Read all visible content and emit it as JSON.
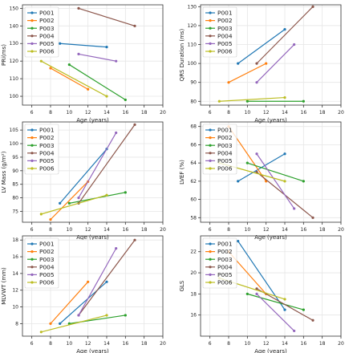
{
  "chart_data": [
    {
      "type": "line",
      "xlabel": "Age (years)",
      "ylabel": "PRi(ms)",
      "xlim": [
        5,
        20
      ],
      "ylim": [
        95,
        152
      ],
      "xticks": [
        "6",
        "8",
        "10",
        "12",
        "14",
        "16",
        "18",
        "20"
      ],
      "yticks": [
        "100",
        "110",
        "120",
        "130",
        "140",
        "150"
      ],
      "grid": true,
      "legend_position": "top-left",
      "series": [
        {
          "name": "P001",
          "color": "#1f77b4",
          "points": [
            [
              9,
              130
            ],
            [
              14,
              128
            ]
          ]
        },
        {
          "name": "P002",
          "color": "#ff7f0e",
          "points": [
            [
              8,
              116
            ],
            [
              12,
              104
            ]
          ]
        },
        {
          "name": "P003",
          "color": "#2ca02c",
          "points": [
            [
              10,
              118
            ],
            [
              16,
              98
            ]
          ]
        },
        {
          "name": "P004",
          "color": "#8c564b",
          "points": [
            [
              11,
              150
            ],
            [
              17,
              140
            ]
          ]
        },
        {
          "name": "P005",
          "color": "#9467bd",
          "points": [
            [
              11,
              124
            ],
            [
              15,
              120
            ]
          ]
        },
        {
          "name": "P006",
          "color": "#bcbd22",
          "points": [
            [
              7,
              120
            ],
            [
              14,
              100
            ]
          ]
        }
      ]
    },
    {
      "type": "line",
      "xlabel": "Age (years)",
      "ylabel": "QRS Duration (ms)",
      "xlim": [
        5,
        20
      ],
      "ylim": [
        78,
        131
      ],
      "xticks": [
        "6",
        "8",
        "10",
        "12",
        "14",
        "16",
        "18",
        "20"
      ],
      "yticks": [
        "80",
        "90",
        "100",
        "110",
        "120",
        "130"
      ],
      "grid": true,
      "legend_position": "top-left",
      "series": [
        {
          "name": "P001",
          "color": "#1f77b4",
          "points": [
            [
              9,
              100
            ],
            [
              14,
              118
            ]
          ]
        },
        {
          "name": "P002",
          "color": "#ff7f0e",
          "points": [
            [
              8,
              90
            ],
            [
              12,
              100
            ]
          ]
        },
        {
          "name": "P003",
          "color": "#2ca02c",
          "points": [
            [
              10,
              80
            ],
            [
              16,
              80
            ]
          ]
        },
        {
          "name": "P004",
          "color": "#8c564b",
          "points": [
            [
              11,
              100
            ],
            [
              17,
              130
            ]
          ]
        },
        {
          "name": "P005",
          "color": "#9467bd",
          "points": [
            [
              11,
              90
            ],
            [
              15,
              110
            ]
          ]
        },
        {
          "name": "P006",
          "color": "#bcbd22",
          "points": [
            [
              7,
              80
            ],
            [
              14,
              82
            ]
          ]
        }
      ]
    },
    {
      "type": "line",
      "xlabel": "Age (years)",
      "ylabel": "LV Mass (g/m²)",
      "xlim": [
        5,
        20
      ],
      "ylim": [
        71,
        108
      ],
      "xticks": [
        "6",
        "8",
        "10",
        "12",
        "14",
        "16",
        "18",
        "20"
      ],
      "yticks": [
        "75",
        "80",
        "85",
        "90",
        "95",
        "100",
        "105"
      ],
      "grid": true,
      "legend_position": "top-left",
      "series": [
        {
          "name": "P001",
          "color": "#1f77b4",
          "points": [
            [
              9,
              78
            ],
            [
              14,
              98
            ]
          ]
        },
        {
          "name": "P002",
          "color": "#ff7f0e",
          "points": [
            [
              8,
              72
            ],
            [
              12,
              86
            ]
          ]
        },
        {
          "name": "P003",
          "color": "#2ca02c",
          "points": [
            [
              10,
              78
            ],
            [
              16,
              82
            ]
          ]
        },
        {
          "name": "P004",
          "color": "#8c564b",
          "points": [
            [
              11,
              78
            ],
            [
              17,
              107
            ]
          ]
        },
        {
          "name": "P005",
          "color": "#9467bd",
          "points": [
            [
              11,
              80
            ],
            [
              15,
              104
            ]
          ]
        },
        {
          "name": "P006",
          "color": "#bcbd22",
          "points": [
            [
              7,
              74
            ],
            [
              14,
              81
            ]
          ]
        }
      ]
    },
    {
      "type": "line",
      "xlabel": "Age (years)",
      "ylabel": "LVEF (%)",
      "xlim": [
        5,
        20
      ],
      "ylim": [
        57.5,
        68.5
      ],
      "xticks": [
        "6",
        "8",
        "10",
        "12",
        "14",
        "16",
        "18",
        "20"
      ],
      "yticks": [
        "58",
        "60",
        "62",
        "64",
        "66",
        "68"
      ],
      "grid": true,
      "legend_position": "top-left",
      "series": [
        {
          "name": "P001",
          "color": "#1f77b4",
          "points": [
            [
              9,
              62
            ],
            [
              14,
              65
            ]
          ]
        },
        {
          "name": "P002",
          "color": "#ff7f0e",
          "points": [
            [
              8,
              68
            ],
            [
              12,
              62
            ]
          ]
        },
        {
          "name": "P003",
          "color": "#2ca02c",
          "points": [
            [
              10,
              64
            ],
            [
              16,
              62
            ]
          ]
        },
        {
          "name": "P004",
          "color": "#8c564b",
          "points": [
            [
              11,
              63
            ],
            [
              17,
              58
            ]
          ]
        },
        {
          "name": "P005",
          "color": "#9467bd",
          "points": [
            [
              11,
              65
            ],
            [
              15,
              59
            ]
          ]
        },
        {
          "name": "P006",
          "color": "#bcbd22",
          "points": [
            [
              7,
              64
            ],
            [
              14,
              62
            ]
          ]
        }
      ]
    },
    {
      "type": "line",
      "xlabel": "Age (years)",
      "ylabel": "MLVWT (mm)",
      "xlim": [
        5,
        20
      ],
      "ylim": [
        6.5,
        18.5
      ],
      "xticks": [
        "6",
        "8",
        "10",
        "12",
        "14",
        "16",
        "18",
        "20"
      ],
      "yticks": [
        "8",
        "10",
        "12",
        "14",
        "16",
        "18"
      ],
      "grid": true,
      "legend_position": "top-left",
      "series": [
        {
          "name": "P001",
          "color": "#1f77b4",
          "points": [
            [
              9,
              8
            ],
            [
              14,
              13
            ]
          ]
        },
        {
          "name": "P002",
          "color": "#ff7f0e",
          "points": [
            [
              8,
              8
            ],
            [
              12,
              13
            ]
          ]
        },
        {
          "name": "P003",
          "color": "#2ca02c",
          "points": [
            [
              10,
              8
            ],
            [
              16,
              9
            ]
          ]
        },
        {
          "name": "P004",
          "color": "#8c564b",
          "points": [
            [
              11,
              9
            ],
            [
              17,
              18
            ]
          ]
        },
        {
          "name": "P005",
          "color": "#9467bd",
          "points": [
            [
              11,
              9
            ],
            [
              15,
              17
            ]
          ]
        },
        {
          "name": "P006",
          "color": "#bcbd22",
          "points": [
            [
              7,
              7
            ],
            [
              14,
              9
            ]
          ]
        }
      ]
    },
    {
      "type": "line",
      "xlabel": "Age (years)",
      "ylabel": "GLS",
      "xlim": [
        5,
        20
      ],
      "ylim": [
        14,
        23.5
      ],
      "xticks": [
        "6",
        "8",
        "10",
        "12",
        "14",
        "16",
        "18",
        "20"
      ],
      "yticks": [
        "16",
        "18",
        "20",
        "22"
      ],
      "grid": true,
      "legend_position": "top-left",
      "series": [
        {
          "name": "P001",
          "color": "#1f77b4",
          "points": [
            [
              9,
              23
            ],
            [
              14,
              16.5
            ]
          ]
        },
        {
          "name": "P002",
          "color": "#ff7f0e",
          "points": [
            [
              8,
              22
            ],
            [
              12,
              18
            ]
          ]
        },
        {
          "name": "P003",
          "color": "#2ca02c",
          "points": [
            [
              10,
              18
            ],
            [
              16,
              16.5
            ]
          ]
        },
        {
          "name": "P004",
          "color": "#8c564b",
          "points": [
            [
              11,
              18.5
            ],
            [
              17,
              15.5
            ]
          ]
        },
        {
          "name": "P005",
          "color": "#9467bd",
          "points": [
            [
              11,
              18
            ],
            [
              15,
              14.5
            ]
          ]
        },
        {
          "name": "P006",
          "color": "#bcbd22",
          "points": [
            [
              7,
              19.5
            ],
            [
              14,
              17.5
            ]
          ]
        }
      ]
    }
  ]
}
